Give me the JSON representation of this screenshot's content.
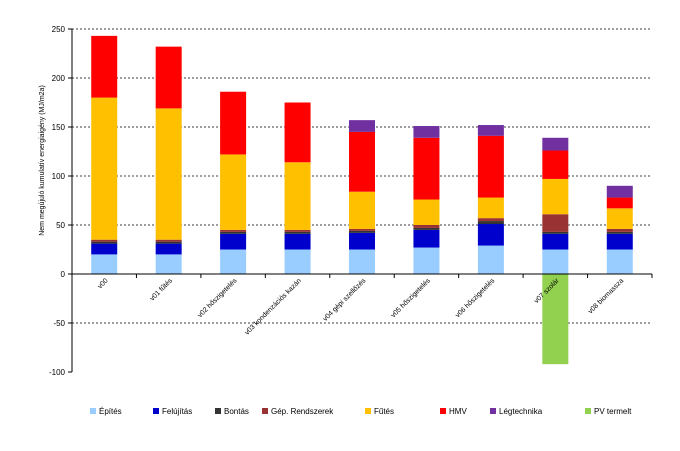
{
  "chart_data": {
    "type": "bar",
    "stacked": true,
    "title": "",
    "xlabel": "",
    "ylabel": "Nem megújuló kumulatív energiaigény (MJ/m2a)",
    "ylim": [
      -100,
      250
    ],
    "yticks": [
      -100,
      -50,
      0,
      50,
      100,
      150,
      200,
      250
    ],
    "grid": true,
    "legend_position": "bottom",
    "categories": [
      "v00",
      "v01 fűtés",
      "v02 hőszigetelés",
      "v03 kondenzációs kazán",
      "v04 gépi szellőzés",
      "v05 hőszigetelés",
      "v06 hőszigetelés",
      "v07 szolár",
      "v08 biomassza"
    ],
    "series": [
      {
        "name": "Építés",
        "color": "#99ccff",
        "values": [
          20,
          20,
          25,
          25,
          25,
          27,
          29,
          25,
          25
        ]
      },
      {
        "name": "Felújítás",
        "color": "#0000cc",
        "values": [
          11,
          11,
          16,
          16,
          17,
          18,
          22,
          16,
          16
        ]
      },
      {
        "name": "Bontás",
        "color": "#333333",
        "values": [
          2,
          2,
          2,
          2,
          2,
          2,
          3,
          2,
          2
        ]
      },
      {
        "name": "Gép. Rendszerek",
        "color": "#993333",
        "values": [
          2,
          2,
          2,
          2,
          2,
          3,
          3,
          18,
          3
        ]
      },
      {
        "name": "Fűtés",
        "color": "#ffc000",
        "values": [
          145,
          134,
          77,
          69,
          38,
          26,
          21,
          36,
          21
        ]
      },
      {
        "name": "HMV",
        "color": "#ff0000",
        "values": [
          63,
          63,
          64,
          61,
          61,
          63,
          63,
          29,
          11
        ]
      },
      {
        "name": "Légtechnika",
        "color": "#7030a0",
        "values": [
          0,
          0,
          0,
          0,
          12,
          12,
          11,
          13,
          12
        ]
      },
      {
        "name": "PV termelt",
        "color": "#92d050",
        "values": [
          0,
          0,
          0,
          0,
          0,
          0,
          0,
          -92,
          0
        ]
      }
    ]
  }
}
